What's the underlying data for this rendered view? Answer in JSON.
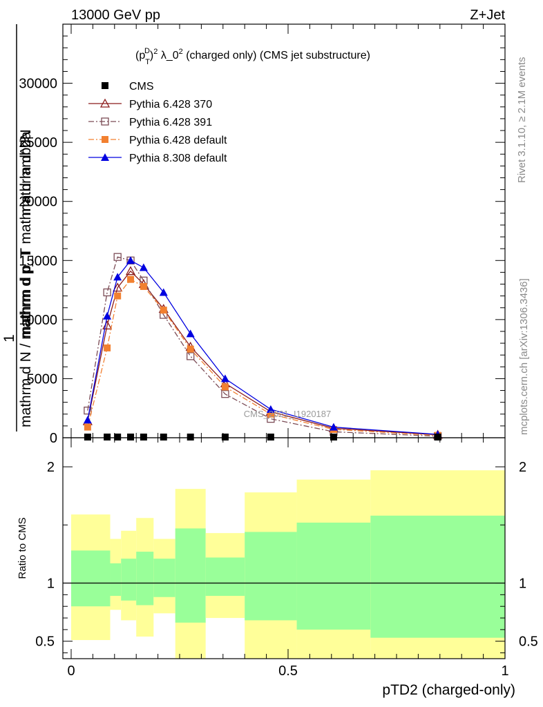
{
  "header": {
    "left": "13000 GeV pp",
    "right": "Z+Jet"
  },
  "side_labels": {
    "rivet": "Rivet 3.1.10, ≥ 2.1M events",
    "mcplots": "mcplots.cern.ch [arXiv:1306.3436]"
  },
  "chart_data": [
    {
      "type": "line",
      "title": "(p_T^D)^2 λ_0^2 (charged only) (CMS jet substructure)",
      "title_parts": {
        "p": "(p",
        "sub": "T",
        "sup": "D",
        "close": ")",
        "exp": "2",
        "mid": " λ_0",
        "exp2": "2",
        "rest": " (charged only) (CMS jet substructure)"
      },
      "ylabel_top": "1",
      "ylabel_bottom": "mathrm d N / mathrm d p_T",
      "ylabel_frac": "mathrm d^2N",
      "ylabel_frac_den": "mathrm d p_T mathrm d lambda",
      "ylim": [
        0,
        35000
      ],
      "yticks": [
        0,
        5000,
        10000,
        15000,
        20000,
        25000,
        30000
      ],
      "ytick_labels": [
        "0",
        "5000",
        "10000",
        "15000",
        "20000",
        "25000",
        "30000"
      ],
      "xlim": [
        0,
        1
      ],
      "watermark": "CMS_2021_I1920187",
      "legend_position": "top-left",
      "series": [
        {
          "name": "CMS",
          "color": "#000000",
          "marker": "square-filled",
          "line": "none",
          "x": [
            0.038,
            0.083,
            0.107,
            0.137,
            0.167,
            0.213,
            0.275,
            0.355,
            0.46,
            0.605,
            0.845
          ],
          "y": [
            40,
            60,
            60,
            60,
            55,
            45,
            40,
            30,
            20,
            10,
            5
          ]
        },
        {
          "name": "Pythia 6.428 370",
          "color": "#8b1a1a",
          "marker": "triangle-open",
          "line": "solid",
          "x": [
            0.038,
            0.083,
            0.107,
            0.137,
            0.167,
            0.213,
            0.275,
            0.355,
            0.46,
            0.605,
            0.845
          ],
          "y": [
            1400,
            9500,
            12700,
            14100,
            13000,
            10900,
            7700,
            4600,
            2200,
            800,
            250
          ]
        },
        {
          "name": "Pythia 6.428 391",
          "color": "#7b4b55",
          "marker": "square-open",
          "line": "dashdot",
          "x": [
            0.038,
            0.083,
            0.107,
            0.137,
            0.167,
            0.213,
            0.275,
            0.355,
            0.46,
            0.605,
            0.845
          ],
          "y": [
            2300,
            12300,
            15300,
            15000,
            13300,
            10400,
            6900,
            3700,
            1600,
            500,
            130
          ]
        },
        {
          "name": "Pythia 6.428 default",
          "color": "#f28030",
          "marker": "square-filled",
          "line": "dashdot",
          "x": [
            0.038,
            0.083,
            0.107,
            0.137,
            0.167,
            0.213,
            0.275,
            0.355,
            0.46,
            0.605,
            0.845
          ],
          "y": [
            900,
            7600,
            12000,
            13400,
            12800,
            10800,
            7500,
            4300,
            2000,
            700,
            200
          ]
        },
        {
          "name": "Pythia 8.308 default",
          "color": "#0000e0",
          "marker": "triangle-filled",
          "line": "solid",
          "x": [
            0.038,
            0.083,
            0.107,
            0.137,
            0.167,
            0.213,
            0.275,
            0.355,
            0.46,
            0.605,
            0.845
          ],
          "y": [
            1500,
            10300,
            13600,
            15000,
            14400,
            12300,
            8800,
            5000,
            2400,
            900,
            280
          ]
        }
      ]
    },
    {
      "type": "area",
      "ylabel": "Ratio to CMS",
      "xlabel": "pTD2 (charged-only)",
      "xlim": [
        0,
        1
      ],
      "ylim": [
        0.35,
        2.25
      ],
      "xticks": [
        0,
        0.5,
        1
      ],
      "xtick_labels": [
        "0",
        "0.5",
        "1"
      ],
      "yticks": [
        0.5,
        1,
        2
      ],
      "ytick_labels": [
        "0.5",
        "1",
        "2"
      ],
      "reference_line": 1,
      "colors": {
        "inner": "#99ff99",
        "outer": "#ffff99"
      },
      "bins": [
        {
          "x0": 0.0,
          "x1": 0.09,
          "inner": [
            0.8,
            1.28
          ],
          "outer": [
            0.51,
            1.59
          ]
        },
        {
          "x0": 0.09,
          "x1": 0.115,
          "inner": [
            0.89,
            1.17
          ],
          "outer": [
            0.77,
            1.38
          ]
        },
        {
          "x0": 0.115,
          "x1": 0.15,
          "inner": [
            0.85,
            1.21
          ],
          "outer": [
            0.68,
            1.45
          ]
        },
        {
          "x0": 0.15,
          "x1": 0.19,
          "inner": [
            0.81,
            1.27
          ],
          "outer": [
            0.54,
            1.56
          ]
        },
        {
          "x0": 0.19,
          "x1": 0.24,
          "inner": [
            0.88,
            1.21
          ],
          "outer": [
            0.74,
            1.38
          ]
        },
        {
          "x0": 0.24,
          "x1": 0.31,
          "inner": [
            0.66,
            1.47
          ],
          "outer": [
            0.35,
            1.81
          ]
        },
        {
          "x0": 0.31,
          "x1": 0.4,
          "inner": [
            0.89,
            1.22
          ],
          "outer": [
            0.7,
            1.43
          ]
        },
        {
          "x0": 0.4,
          "x1": 0.52,
          "inner": [
            0.68,
            1.44
          ],
          "outer": [
            0.35,
            1.78
          ]
        },
        {
          "x0": 0.52,
          "x1": 0.69,
          "inner": [
            0.6,
            1.52
          ],
          "outer": [
            0.35,
            1.89
          ]
        },
        {
          "x0": 0.69,
          "x1": 1.0,
          "inner": [
            0.53,
            1.58
          ],
          "outer": [
            0.35,
            1.97
          ]
        }
      ]
    }
  ]
}
